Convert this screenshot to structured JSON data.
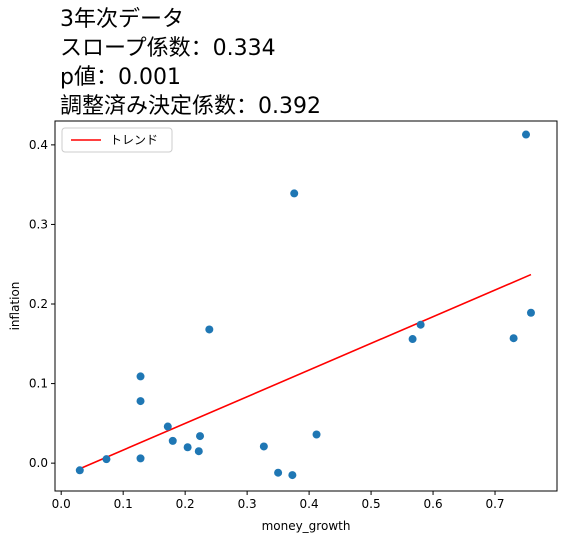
{
  "chart_data": {
    "type": "scatter",
    "title_lines": [
      "3年次データ",
      "スロープ係数：0.334",
      "p値：0.001",
      "調整済み決定係数：0.392"
    ],
    "xlabel": "money_growth",
    "ylabel": "inflation",
    "xlim": [
      -0.01,
      0.8
    ],
    "ylim": [
      -0.035,
      0.43
    ],
    "xticks": [
      0.0,
      0.1,
      0.2,
      0.3,
      0.4,
      0.5,
      0.6,
      0.7
    ],
    "xtick_labels": [
      "0.0",
      "0.1",
      "0.2",
      "0.3",
      "0.4",
      "0.5",
      "0.6",
      "0.7"
    ],
    "yticks": [
      0.0,
      0.1,
      0.2,
      0.3,
      0.4
    ],
    "ytick_labels": [
      "0.0",
      "0.1",
      "0.2",
      "0.3",
      "0.4"
    ],
    "grid": false,
    "legend_position": "top-left",
    "series": [
      {
        "kind": "scatter",
        "color": "#1f77b4",
        "x": [
          0.03,
          0.073,
          0.128,
          0.128,
          0.128,
          0.172,
          0.18,
          0.204,
          0.222,
          0.224,
          0.239,
          0.327,
          0.35,
          0.373,
          0.376,
          0.412,
          0.567,
          0.58,
          0.73,
          0.75,
          0.758
        ],
        "y": [
          -0.009,
          0.005,
          0.109,
          0.078,
          0.006,
          0.046,
          0.028,
          0.02,
          0.015,
          0.034,
          0.168,
          0.021,
          -0.012,
          -0.015,
          0.339,
          0.036,
          0.156,
          0.174,
          0.157,
          0.413,
          0.189
        ]
      },
      {
        "kind": "line",
        "name": "トレンド",
        "color": "#ff0000",
        "x": [
          0.03,
          0.758
        ],
        "y": [
          -0.007,
          0.237
        ]
      }
    ]
  }
}
